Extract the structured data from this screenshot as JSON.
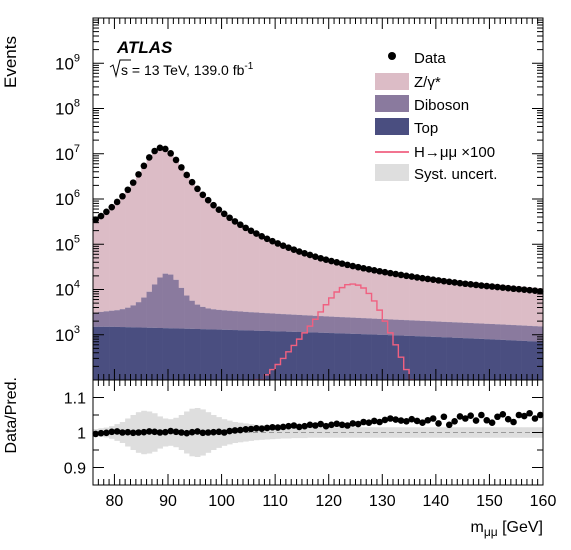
{
  "chart_data": [
    {
      "type": "area",
      "panel": "main",
      "experiment": "ATLAS",
      "sqrt_s_label": "s",
      "energy_label": " = 13 TeV, 139.0 fb",
      "lumi_exponent": "-1",
      "ylabel": "Events",
      "yscale": "log",
      "ylim": [
        100,
        10000000000.0
      ],
      "ytick_labels": [
        "10",
        "10",
        "10",
        "10",
        "10",
        "10",
        "10"
      ],
      "ytick_exponents": [
        "3",
        "4",
        "5",
        "6",
        "7",
        "8",
        "9"
      ],
      "ytick_values": [
        1000.0,
        10000.0,
        100000.0,
        1000000.0,
        10000000.0,
        100000000.0,
        1000000000.0
      ],
      "xlim": [
        76,
        160
      ],
      "legend_position": "top-right",
      "legend": [
        {
          "label": "Data",
          "symbol": "marker",
          "color": "#000000"
        },
        {
          "label": "Z/γ*",
          "symbol": "box",
          "color": "#dcbcc6"
        },
        {
          "label": "Diboson",
          "symbol": "box",
          "color": "#8a7a9e"
        },
        {
          "label": "Top",
          "symbol": "box",
          "color": "#4a4e80"
        },
        {
          "label": "H→μμ ×100",
          "symbol": "line",
          "color": "#f06080"
        },
        {
          "label": "Syst. uncert.",
          "symbol": "box",
          "color": "#dedede"
        }
      ],
      "x": [
        76.5,
        77.5,
        78.5,
        79.5,
        80.5,
        81.5,
        82.5,
        83.5,
        84.5,
        85.5,
        86.5,
        87.5,
        88.5,
        89.5,
        90.5,
        91.5,
        92.5,
        93.5,
        94.5,
        95.5,
        96.5,
        97.5,
        98.5,
        99.5,
        100.5,
        101.5,
        102.5,
        103.5,
        104.5,
        105.5,
        106.5,
        107.5,
        108.5,
        109.5,
        110.5,
        111.5,
        112.5,
        113.5,
        114.5,
        115.5,
        116.5,
        117.5,
        118.5,
        119.5,
        120.5,
        121.5,
        122.5,
        123.5,
        124.5,
        125.5,
        126.5,
        127.5,
        128.5,
        129.5,
        130.5,
        131.5,
        132.5,
        133.5,
        134.5,
        135.5,
        136.5,
        137.5,
        138.5,
        139.5,
        140.5,
        141.5,
        142.5,
        143.5,
        144.5,
        145.5,
        146.5,
        147.5,
        148.5,
        149.5,
        150.5,
        151.5,
        152.5,
        153.5,
        154.5,
        155.5,
        156.5,
        157.5,
        158.5,
        159.5
      ],
      "series": [
        {
          "name": "Top",
          "values": [
            1500,
            1500,
            1500,
            1500,
            1490,
            1480,
            1470,
            1460,
            1450,
            1440,
            1430,
            1420,
            1410,
            1400,
            1390,
            1380,
            1370,
            1360,
            1350,
            1340,
            1330,
            1320,
            1310,
            1300,
            1290,
            1280,
            1270,
            1260,
            1250,
            1240,
            1230,
            1220,
            1210,
            1200,
            1190,
            1180,
            1170,
            1160,
            1150,
            1140,
            1130,
            1120,
            1110,
            1100,
            1090,
            1080,
            1070,
            1060,
            1050,
            1040,
            1030,
            1020,
            1010,
            1000,
            990,
            980,
            970,
            960,
            950,
            940,
            930,
            920,
            910,
            900,
            890,
            880,
            870,
            860,
            850,
            840,
            830,
            820,
            810,
            800,
            790,
            780,
            770,
            760,
            750,
            740,
            730,
            720,
            710,
            700
          ]
        },
        {
          "name": "Diboson",
          "values": [
            1600,
            1700,
            1800,
            1900,
            2000,
            2200,
            2500,
            3000,
            3800,
            5200,
            7500,
            11500,
            17000,
            21000,
            20000,
            15000,
            9500,
            6000,
            4300,
            3300,
            2800,
            2500,
            2350,
            2250,
            2180,
            2120,
            2060,
            2010,
            1960,
            1910,
            1870,
            1830,
            1790,
            1750,
            1715,
            1680,
            1650,
            1620,
            1590,
            1560,
            1530,
            1500,
            1475,
            1450,
            1425,
            1400,
            1380,
            1360,
            1340,
            1320,
            1300,
            1280,
            1260,
            1240,
            1220,
            1200,
            1185,
            1170,
            1155,
            1140,
            1125,
            1110,
            1095,
            1080,
            1065,
            1050,
            1037,
            1024,
            1011,
            998,
            985,
            972,
            960,
            948,
            936,
            924,
            912,
            900,
            888,
            876,
            864,
            852,
            840,
            828
          ]
        },
        {
          "name": "Z/γ*",
          "values": [
            350000,
            420000,
            520000,
            660000,
            860000,
            1150000,
            1600000,
            2300000,
            3500000,
            5400000,
            8300000,
            11500000,
            13500000,
            12800000,
            10200000,
            7300000,
            5000000,
            3400000,
            2350000,
            1680000,
            1240000,
            940000,
            730000,
            580000,
            470000,
            385000,
            320000,
            270000,
            230000,
            198000,
            172000,
            150000,
            132000,
            117000,
            104000,
            93000,
            84000,
            76000,
            69000,
            63000,
            58000,
            53000,
            49000,
            45500,
            42500,
            39800,
            37300,
            35000,
            33000,
            31200,
            29500,
            28000,
            26600,
            25300,
            24100,
            23000,
            22000,
            21000,
            20100,
            19300,
            18500,
            17800,
            17100,
            16500,
            15900,
            15300,
            14800,
            14300,
            13800,
            13400,
            13000,
            12600,
            12200,
            11900,
            11600,
            11300,
            11000,
            10700,
            10400,
            10150,
            9900,
            9650,
            9400,
            9150
          ]
        },
        {
          "name": "Data",
          "values": [
            350000,
            420000,
            520000,
            660000,
            860000,
            1150000,
            1600000,
            2300000,
            3500000,
            5400000,
            8300000,
            11500000,
            13500000,
            12800000,
            10200000,
            7300000,
            5000000,
            3400000,
            2350000,
            1680000,
            1240000,
            940000,
            730000,
            580000,
            470000,
            385000,
            320000,
            270000,
            230000,
            198000,
            172000,
            150000,
            132000,
            117000,
            104000,
            93000,
            84000,
            76000,
            69000,
            63000,
            58000,
            53000,
            49000,
            45500,
            42500,
            39800,
            37300,
            35000,
            33000,
            31200,
            29500,
            28000,
            26600,
            25300,
            24100,
            23000,
            22000,
            21000,
            20100,
            19300,
            18500,
            17800,
            17100,
            16500,
            15900,
            15300,
            14800,
            14300,
            13800,
            13400,
            13000,
            12600,
            12200,
            11900,
            11600,
            11300,
            11000,
            10700,
            10400,
            10150,
            9900,
            9650,
            9400,
            9150
          ]
        },
        {
          "name": "H→μμ ×100",
          "values": [
            0,
            0,
            0,
            0,
            0,
            0,
            0,
            0,
            0,
            0,
            0,
            0,
            0,
            0,
            0,
            0,
            0,
            0,
            0,
            0,
            0,
            0,
            0,
            0,
            0,
            0,
            0,
            0,
            0,
            0,
            80,
            100,
            130,
            170,
            220,
            300,
            420,
            580,
            800,
            1100,
            1550,
            2200,
            3200,
            4600,
            6500,
            8800,
            11000,
            12800,
            13200,
            12500,
            10800,
            8200,
            5600,
            3500,
            2000,
            1100,
            600,
            320,
            170,
            90,
            0,
            0,
            0,
            0,
            0,
            0,
            0,
            0,
            0,
            0,
            0,
            0,
            0,
            0,
            0,
            0,
            0,
            0,
            0,
            0,
            0,
            0,
            0,
            0
          ]
        }
      ]
    },
    {
      "type": "scatter",
      "panel": "ratio",
      "ylabel": "Data/Pred.",
      "ylim": [
        0.85,
        1.15
      ],
      "ytick_labels": [
        "0.9",
        "1",
        "1.1"
      ],
      "ytick_values": [
        0.9,
        1.0,
        1.1
      ],
      "xlabel_main": "m",
      "xlabel_sub": "μμ",
      "xlabel_unit": " [GeV]",
      "xlim": [
        76,
        160
      ],
      "xtick_labels": [
        "80",
        "90",
        "100",
        "110",
        "120",
        "130",
        "140",
        "150",
        "160"
      ],
      "xtick_values": [
        80,
        90,
        100,
        110,
        120,
        130,
        140,
        150,
        160
      ],
      "x": [
        76.5,
        77.5,
        78.5,
        79.5,
        80.5,
        81.5,
        82.5,
        83.5,
        84.5,
        85.5,
        86.5,
        87.5,
        88.5,
        89.5,
        90.5,
        91.5,
        92.5,
        93.5,
        94.5,
        95.5,
        96.5,
        97.5,
        98.5,
        99.5,
        100.5,
        101.5,
        102.5,
        103.5,
        104.5,
        105.5,
        106.5,
        107.5,
        108.5,
        109.5,
        110.5,
        111.5,
        112.5,
        113.5,
        114.5,
        115.5,
        116.5,
        117.5,
        118.5,
        119.5,
        120.5,
        121.5,
        122.5,
        123.5,
        124.5,
        125.5,
        126.5,
        127.5,
        128.5,
        129.5,
        130.5,
        131.5,
        132.5,
        133.5,
        134.5,
        135.5,
        136.5,
        137.5,
        138.5,
        139.5,
        140.5,
        141.5,
        142.5,
        143.5,
        144.5,
        145.5,
        146.5,
        147.5,
        148.5,
        149.5,
        150.5,
        151.5,
        152.5,
        153.5,
        154.5,
        155.5,
        156.5,
        157.5,
        158.5,
        159.5
      ],
      "ratio": [
        0.996,
        0.998,
        0.999,
        1.002,
        1.003,
        1.0,
        1.001,
        0.999,
        1.0,
        1.001,
        1.003,
        1.002,
        1.0,
        1.001,
        1.004,
        1.002,
        1.0,
        0.998,
        1.001,
        1.003,
        0.999,
        1.0,
        1.001,
        1.002,
        1.0,
        1.004,
        1.006,
        1.007,
        1.009,
        1.01,
        1.012,
        1.011,
        1.013,
        1.015,
        1.014,
        1.016,
        1.018,
        1.02,
        1.016,
        1.018,
        1.022,
        1.02,
        1.024,
        1.018,
        1.022,
        1.025,
        1.022,
        1.02,
        1.026,
        1.024,
        1.03,
        1.028,
        1.033,
        1.03,
        1.036,
        1.04,
        1.037,
        1.034,
        1.032,
        1.038,
        1.033,
        1.028,
        1.035,
        1.04,
        1.026,
        1.045,
        1.022,
        1.032,
        1.046,
        1.04,
        1.048,
        1.034,
        1.05,
        1.035,
        1.028,
        1.045,
        1.052,
        1.038,
        1.03,
        1.05,
        1.047,
        1.055,
        1.04,
        1.05
      ],
      "syst_halfwidth": [
        0.01,
        0.012,
        0.014,
        0.018,
        0.024,
        0.03,
        0.04,
        0.05,
        0.058,
        0.062,
        0.06,
        0.055,
        0.046,
        0.04,
        0.038,
        0.042,
        0.05,
        0.06,
        0.068,
        0.07,
        0.066,
        0.058,
        0.05,
        0.044,
        0.038,
        0.034,
        0.03,
        0.028,
        0.026,
        0.024,
        0.022,
        0.021,
        0.02,
        0.019,
        0.018,
        0.017,
        0.017,
        0.016,
        0.016,
        0.016,
        0.015,
        0.015,
        0.015,
        0.015,
        0.015,
        0.015,
        0.015,
        0.015,
        0.015,
        0.015,
        0.015,
        0.015,
        0.015,
        0.015,
        0.015,
        0.015,
        0.015,
        0.015,
        0.015,
        0.015,
        0.015,
        0.015,
        0.015,
        0.015,
        0.015,
        0.015,
        0.015,
        0.015,
        0.015,
        0.015,
        0.015,
        0.015,
        0.015,
        0.015,
        0.015,
        0.015,
        0.015,
        0.015,
        0.015,
        0.015,
        0.015,
        0.015,
        0.015,
        0.015
      ]
    }
  ]
}
